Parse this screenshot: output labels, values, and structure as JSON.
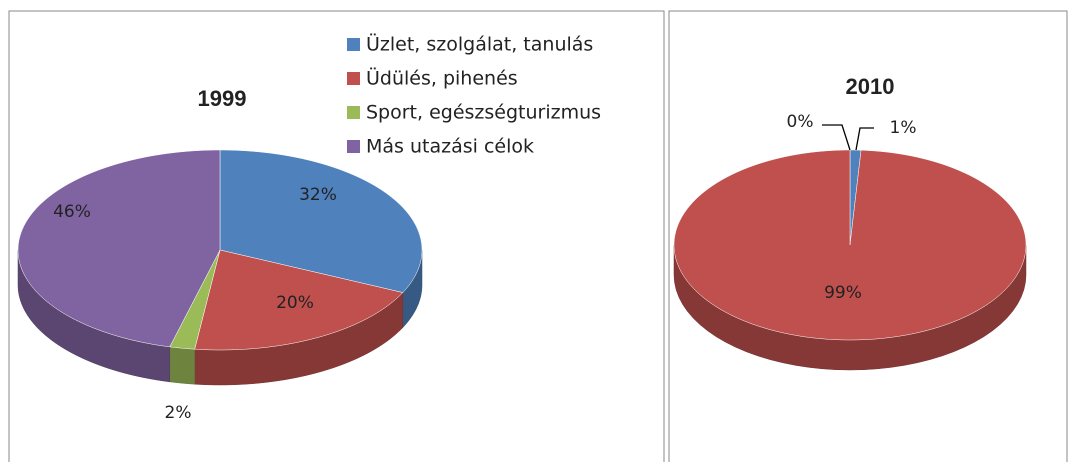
{
  "chart_data": [
    {
      "type": "pie",
      "title": "1999",
      "categories": [
        "Üzlet, szolgálat, tanulás",
        "Üdülés, pihenés",
        "Sport, egészségturizmus",
        "Más utazási célok"
      ],
      "values": [
        32,
        20,
        2,
        46
      ],
      "value_labels": [
        "32%",
        "20%",
        "2%",
        "46%"
      ],
      "colors": [
        "#4f81bd",
        "#c0504d",
        "#9bbb59",
        "#8064a2"
      ],
      "legend": "top-right"
    },
    {
      "type": "pie",
      "title": "2010",
      "values": [
        1,
        99,
        0
      ],
      "value_labels": [
        "1%",
        "99%",
        "0%"
      ],
      "colors": [
        "#4f81bd",
        "#c0504d",
        "#9bbb59"
      ]
    }
  ]
}
